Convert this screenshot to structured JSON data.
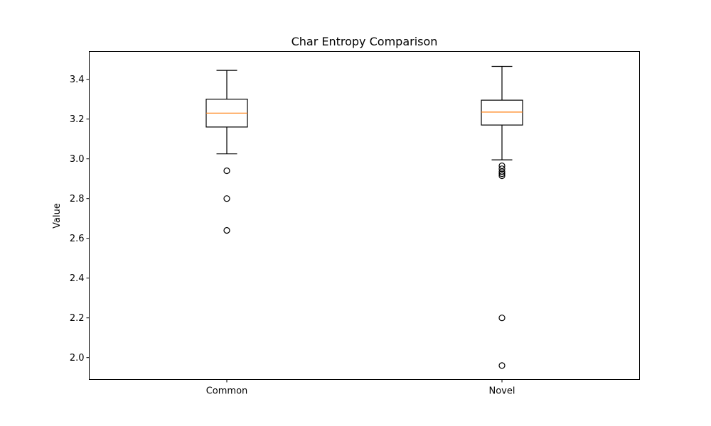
{
  "chart_data": {
    "type": "box",
    "title": "Char Entropy Comparison",
    "xlabel": "",
    "ylabel": "Value",
    "ylim": [
      1.89,
      3.54
    ],
    "yticks": [
      2.0,
      2.2,
      2.4,
      2.6,
      2.8,
      3.0,
      3.2,
      3.4
    ],
    "ytick_labels": [
      "2.0",
      "2.2",
      "2.4",
      "2.6",
      "2.8",
      "3.0",
      "3.2",
      "3.4"
    ],
    "grid": false,
    "colors": {
      "box": "#000000",
      "median": "#ff7f0e",
      "whisker": "#000000",
      "flier": "#000000"
    },
    "categories": [
      "Common",
      "Novel"
    ],
    "boxes": [
      {
        "label": "Common",
        "whisker_low": 3.025,
        "q1": 3.16,
        "median": 3.23,
        "q3": 3.3,
        "whisker_high": 3.445,
        "fliers": [
          2.94,
          2.8,
          2.64
        ]
      },
      {
        "label": "Novel",
        "whisker_low": 2.995,
        "q1": 3.17,
        "median": 3.235,
        "q3": 3.295,
        "whisker_high": 3.465,
        "fliers": [
          2.965,
          2.95,
          2.935,
          2.925,
          2.915,
          2.2,
          1.96
        ]
      }
    ]
  }
}
